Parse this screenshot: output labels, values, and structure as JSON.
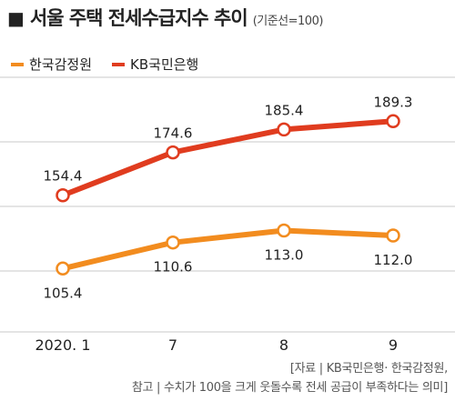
{
  "header": {
    "mark": "■",
    "title": "서울 주택 전세수급지수 추이",
    "subtitle": "(기준선=100)"
  },
  "colors": {
    "series_kab": "#f28c1f",
    "series_kb": "#e03c1f",
    "grid": "#c8c8c8",
    "text": "#222222"
  },
  "chart_data": {
    "type": "line",
    "x": [
      "2020. 1",
      "7",
      "8",
      "9"
    ],
    "series": [
      {
        "name": "한국감정원",
        "values": [
          105.4,
          110.6,
          113.0,
          112.0
        ],
        "color": "#f28c1f"
      },
      {
        "name": "KB국민은행",
        "values": [
          154.4,
          174.6,
          185.4,
          189.3
        ],
        "color": "#e03c1f"
      }
    ],
    "data_labels": {
      "한국감정원": [
        "105.4",
        "110.6",
        "113.0",
        "112.0"
      ],
      "KB국민은행": [
        "154.4",
        "174.6",
        "185.4",
        "189.3"
      ]
    },
    "title": "서울 주택 전세수급지수 추이",
    "subtitle": "(기준선=100)",
    "legend": "top-left",
    "grid": true
  },
  "source": {
    "line1": "[자료 | KB국민은행· 한국감정원,",
    "line2": "참고 | 수치가 100을 크게 웃돌수록 전세 공급이 부족하다는 의미]"
  }
}
